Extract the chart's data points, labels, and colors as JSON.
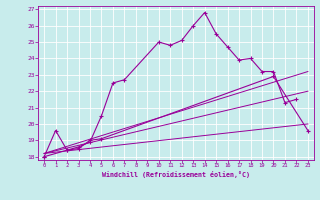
{
  "xlabel": "Windchill (Refroidissement éolien,°C)",
  "bg_color": "#c8ecec",
  "line_color": "#990099",
  "grid_color": "#ffffff",
  "xlim": [
    -0.5,
    23.5
  ],
  "ylim": [
    17.8,
    27.2
  ],
  "xticks": [
    0,
    1,
    2,
    3,
    4,
    5,
    6,
    7,
    8,
    9,
    10,
    11,
    12,
    13,
    14,
    15,
    16,
    17,
    18,
    19,
    20,
    21,
    22,
    23
  ],
  "yticks": [
    18,
    19,
    20,
    21,
    22,
    23,
    24,
    25,
    26,
    27
  ],
  "curve1_x": [
    0,
    1,
    2,
    3,
    4,
    5,
    6,
    7,
    10,
    11,
    12,
    13,
    14,
    15,
    16,
    17,
    18,
    19,
    20,
    21,
    22
  ],
  "curve1_y": [
    18.0,
    19.6,
    18.4,
    18.6,
    18.9,
    20.5,
    22.5,
    22.7,
    25.0,
    24.8,
    25.1,
    26.0,
    26.8,
    25.5,
    24.7,
    23.9,
    24.0,
    23.2,
    23.2,
    21.3,
    21.5
  ],
  "curve2_x": [
    0,
    2,
    3,
    4,
    5,
    20,
    23
  ],
  "curve2_y": [
    18.0,
    18.4,
    18.5,
    19.0,
    19.1,
    22.9,
    19.6
  ],
  "line1_x": [
    0,
    23
  ],
  "line1_y": [
    18.2,
    23.2
  ],
  "line2_x": [
    0,
    23
  ],
  "line2_y": [
    18.2,
    22.0
  ],
  "line3_x": [
    0,
    23
  ],
  "line3_y": [
    18.2,
    20.0
  ]
}
